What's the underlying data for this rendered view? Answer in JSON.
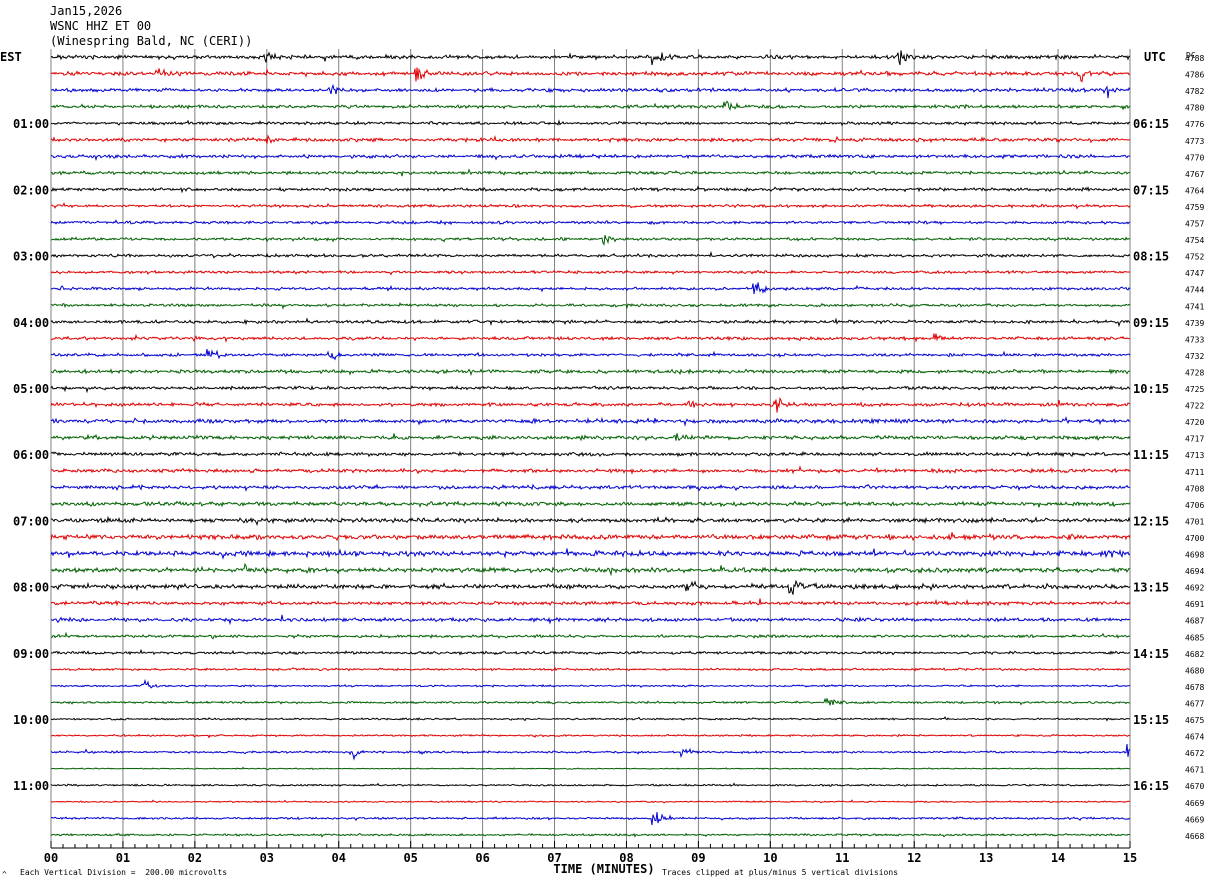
{
  "header": {
    "date": "Jan15,2026",
    "station": "WSNC HHZ ET 00",
    "location": "(Winespring Bald, NC (CERI))"
  },
  "axes": {
    "left_zone": "EST",
    "right_zone": "UTC",
    "dc_label": "DC",
    "xlabel": "TIME (MINUTES)"
  },
  "footer": {
    "scale_note": "Each Vertical Division =  200.00 microvolts",
    "clip_note": "Traces clipped at plus/minus 5 vertical divisions",
    "corner_mark": "^"
  },
  "chart_data": {
    "type": "seismogram",
    "x_ticks": [
      "00",
      "01",
      "02",
      "03",
      "04",
      "05",
      "06",
      "07",
      "08",
      "09",
      "10",
      "11",
      "12",
      "13",
      "14",
      "15"
    ],
    "xlim": [
      0,
      15
    ],
    "row_minutes": 15,
    "trace_colors": [
      "#000000",
      "#e00000",
      "#0000d0",
      "#006000"
    ],
    "grid_color": "#808080",
    "left_time_labels": [
      {
        "row": 4,
        "label": "01:00"
      },
      {
        "row": 8,
        "label": "02:00"
      },
      {
        "row": 12,
        "label": "03:00"
      },
      {
        "row": 16,
        "label": "04:00"
      },
      {
        "row": 20,
        "label": "05:00"
      },
      {
        "row": 24,
        "label": "06:00"
      },
      {
        "row": 28,
        "label": "07:00"
      },
      {
        "row": 32,
        "label": "08:00"
      },
      {
        "row": 36,
        "label": "09:00"
      },
      {
        "row": 40,
        "label": "10:00"
      },
      {
        "row": 44,
        "label": "11:00"
      }
    ],
    "right_time_labels": [
      {
        "row": 4,
        "label": "06:15"
      },
      {
        "row": 8,
        "label": "07:15"
      },
      {
        "row": 12,
        "label": "08:15"
      },
      {
        "row": 16,
        "label": "09:15"
      },
      {
        "row": 20,
        "label": "10:15"
      },
      {
        "row": 24,
        "label": "11:15"
      },
      {
        "row": 28,
        "label": "12:15"
      },
      {
        "row": 32,
        "label": "13:15"
      },
      {
        "row": 36,
        "label": "14:15"
      },
      {
        "row": 40,
        "label": "15:15"
      },
      {
        "row": 44,
        "label": "16:15"
      }
    ],
    "dc_offsets": [
      "4788",
      "4786",
      "4782",
      "4780",
      "4776",
      "4773",
      "4770",
      "4767",
      "4764",
      "4759",
      "4757",
      "4754",
      "4752",
      "4747",
      "4744",
      "4741",
      "4739",
      "4733",
      "4732",
      "4728",
      "4725",
      "4722",
      "4720",
      "4717",
      "4713",
      "4711",
      "4708",
      "4706",
      "4701",
      "4700",
      "4698",
      "4694",
      "4692",
      "4691",
      "4687",
      "4685",
      "4682",
      "4680",
      "4678",
      "4677",
      "4675",
      "4674",
      "4672",
      "4671",
      "4670",
      "4669",
      "4669",
      "4668"
    ],
    "trace_activity": [
      1.1,
      1.1,
      1.0,
      0.9,
      0.8,
      1.0,
      1.0,
      0.9,
      0.9,
      0.8,
      0.8,
      0.8,
      0.8,
      0.8,
      0.8,
      0.8,
      0.9,
      0.9,
      0.8,
      1.0,
      0.9,
      1.0,
      1.1,
      1.1,
      1.0,
      1.0,
      1.0,
      1.1,
      1.2,
      1.4,
      1.4,
      1.3,
      1.3,
      1.0,
      1.0,
      0.8,
      0.8,
      0.6,
      0.5,
      0.6,
      0.5,
      0.5,
      0.6,
      0.3,
      0.5,
      0.4,
      0.6,
      0.6
    ],
    "events": [
      {
        "row": 0,
        "t": 3.0,
        "amp": 3.0
      },
      {
        "row": 0,
        "t": 8.4,
        "amp": 3.5
      },
      {
        "row": 0,
        "t": 11.8,
        "amp": 2.8
      },
      {
        "row": 1,
        "t": 1.5,
        "amp": 3.2
      },
      {
        "row": 1,
        "t": 5.1,
        "amp": 3.5
      },
      {
        "row": 1,
        "t": 14.3,
        "amp": 2.5
      },
      {
        "row": 2,
        "t": 3.9,
        "amp": 2.6
      },
      {
        "row": 2,
        "t": 14.7,
        "amp": 2.4
      },
      {
        "row": 3,
        "t": 9.4,
        "amp": 2.2
      },
      {
        "row": 5,
        "t": 3.0,
        "amp": 2.2
      },
      {
        "row": 11,
        "t": 7.7,
        "amp": 2.6
      },
      {
        "row": 14,
        "t": 9.8,
        "amp": 3.2
      },
      {
        "row": 17,
        "t": 12.3,
        "amp": 2.0
      },
      {
        "row": 18,
        "t": 2.2,
        "amp": 2.0
      },
      {
        "row": 18,
        "t": 3.9,
        "amp": 2.0
      },
      {
        "row": 21,
        "t": 10.1,
        "amp": 2.8
      },
      {
        "row": 21,
        "t": 8.9,
        "amp": 2.2
      },
      {
        "row": 23,
        "t": 8.7,
        "amp": 2.4
      },
      {
        "row": 29,
        "t": 0.0,
        "amp": 2.0
      },
      {
        "row": 30,
        "t": 14.7,
        "amp": 2.2
      },
      {
        "row": 31,
        "t": 2.7,
        "amp": 2.6
      },
      {
        "row": 32,
        "t": 8.8,
        "amp": 2.8
      },
      {
        "row": 32,
        "t": 10.3,
        "amp": 3.5
      },
      {
        "row": 38,
        "t": 1.3,
        "amp": 3.0
      },
      {
        "row": 39,
        "t": 10.8,
        "amp": 2.2
      },
      {
        "row": 42,
        "t": 4.2,
        "amp": 2.2
      },
      {
        "row": 42,
        "t": 8.8,
        "amp": 2.6
      },
      {
        "row": 42,
        "t": 15.0,
        "amp": 2.4
      },
      {
        "row": 46,
        "t": 8.4,
        "amp": 3.0
      }
    ]
  }
}
